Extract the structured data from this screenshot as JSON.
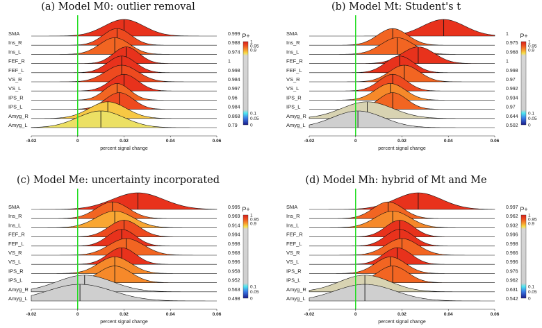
{
  "colorbar": {
    "title": "P+",
    "ticks": [
      "1",
      "0.95",
      "0.9",
      "0.1",
      "0.05",
      "0"
    ]
  },
  "chart_data": [
    {
      "type": "ridgeline",
      "title": "(a) Model M0: outlier removal",
      "xlabel": "percent signal change",
      "xlim": [
        -0.02,
        0.06
      ],
      "xticks": [
        "-0.02",
        "0",
        "0.02",
        "0.04",
        "0.06"
      ],
      "reference_line": 0,
      "regions": [
        {
          "name": "SMA",
          "mean": 0.02,
          "sd": 0.0085,
          "p": "0.999"
        },
        {
          "name": "Ins_R",
          "mean": 0.017,
          "sd": 0.006,
          "p": "0.988"
        },
        {
          "name": "Ins_L",
          "mean": 0.016,
          "sd": 0.0065,
          "p": "0.974"
        },
        {
          "name": "FEF_R",
          "mean": 0.021,
          "sd": 0.0055,
          "p": "1"
        },
        {
          "name": "FEF_L",
          "mean": 0.019,
          "sd": 0.006,
          "p": "0.998"
        },
        {
          "name": "VS_R",
          "mean": 0.019,
          "sd": 0.007,
          "p": "0.984"
        },
        {
          "name": "VS_L",
          "mean": 0.02,
          "sd": 0.006,
          "p": "0.997"
        },
        {
          "name": "IPS_R",
          "mean": 0.017,
          "sd": 0.0055,
          "p": "0.96"
        },
        {
          "name": "IPS_L",
          "mean": 0.018,
          "sd": 0.006,
          "p": "0.984"
        },
        {
          "name": "Amyg_R",
          "mean": 0.013,
          "sd": 0.008,
          "p": "0.868"
        },
        {
          "name": "Amyg_L",
          "mean": 0.01,
          "sd": 0.01,
          "p": "0.79"
        }
      ]
    },
    {
      "type": "ridgeline",
      "title": "(b) Model Mt: Student's t",
      "xlabel": "percent signal change",
      "xlim": [
        -0.02,
        0.06
      ],
      "xticks": [
        "-0.02",
        "0",
        "0.02",
        "0.04",
        "0.06"
      ],
      "reference_line": 0,
      "regions": [
        {
          "name": "SMA",
          "mean": 0.038,
          "sd": 0.009,
          "p": "1"
        },
        {
          "name": "Ins_R",
          "mean": 0.016,
          "sd": 0.0065,
          "p": "0.975"
        },
        {
          "name": "Ins_L",
          "mean": 0.018,
          "sd": 0.007,
          "p": "0.968"
        },
        {
          "name": "FEF_R",
          "mean": 0.027,
          "sd": 0.007,
          "p": "1"
        },
        {
          "name": "FEF_L",
          "mean": 0.019,
          "sd": 0.006,
          "p": "0.998"
        },
        {
          "name": "VS_R",
          "mean": 0.021,
          "sd": 0.0065,
          "p": "0.97"
        },
        {
          "name": "VS_L",
          "mean": 0.016,
          "sd": 0.006,
          "p": "0.992"
        },
        {
          "name": "IPS_R",
          "mean": 0.015,
          "sd": 0.0065,
          "p": "0.934"
        },
        {
          "name": "IPS_L",
          "mean": 0.016,
          "sd": 0.006,
          "p": "0.97"
        },
        {
          "name": "Amyg_R",
          "mean": 0.005,
          "sd": 0.011,
          "p": "0.644"
        },
        {
          "name": "Amyg_L",
          "mean": 0.001,
          "sd": 0.011,
          "p": "0.502"
        }
      ]
    },
    {
      "type": "ridgeline",
      "title": "(c) Model Me: uncertainty incorporated",
      "xlabel": "percent signal change",
      "xlim": [
        -0.02,
        0.06
      ],
      "xticks": [
        "-0.02",
        "0",
        "0.02",
        "0.04",
        "0.06"
      ],
      "reference_line": 0,
      "regions": [
        {
          "name": "SMA",
          "mean": 0.026,
          "sd": 0.011,
          "p": "0.995"
        },
        {
          "name": "Ins_R",
          "mean": 0.015,
          "sd": 0.007,
          "p": "0.969"
        },
        {
          "name": "Ins_L",
          "mean": 0.016,
          "sd": 0.008,
          "p": "0.914"
        },
        {
          "name": "FEF_R",
          "mean": 0.02,
          "sd": 0.0065,
          "p": "0.994"
        },
        {
          "name": "FEF_L",
          "mean": 0.019,
          "sd": 0.006,
          "p": "0.998"
        },
        {
          "name": "VS_R",
          "mean": 0.021,
          "sd": 0.0075,
          "p": "0.968"
        },
        {
          "name": "VS_L",
          "mean": 0.019,
          "sd": 0.006,
          "p": "0.996"
        },
        {
          "name": "IPS_R",
          "mean": 0.016,
          "sd": 0.007,
          "p": "0.958"
        },
        {
          "name": "IPS_L",
          "mean": 0.016,
          "sd": 0.007,
          "p": "0.952"
        },
        {
          "name": "Amyg_R",
          "mean": 0.003,
          "sd": 0.012,
          "p": "0.563"
        },
        {
          "name": "Amyg_L",
          "mean": 0.001,
          "sd": 0.014,
          "p": "0.498"
        }
      ]
    },
    {
      "type": "ridgeline",
      "title": "(d) Model Mh: hybrid of Mt and Me",
      "xlabel": "percent signal change",
      "xlim": [
        -0.02,
        0.06
      ],
      "xticks": [
        "-0.02",
        "0",
        "0.02",
        "0.04",
        "0.06"
      ],
      "reference_line": 0,
      "regions": [
        {
          "name": "SMA",
          "mean": 0.027,
          "sd": 0.01,
          "p": "0.997"
        },
        {
          "name": "Ins_R",
          "mean": 0.014,
          "sd": 0.0065,
          "p": "0.962"
        },
        {
          "name": "Ins_L",
          "mean": 0.016,
          "sd": 0.0075,
          "p": "0.932"
        },
        {
          "name": "FEF_R",
          "mean": 0.019,
          "sd": 0.006,
          "p": "0.996"
        },
        {
          "name": "FEF_L",
          "mean": 0.019,
          "sd": 0.006,
          "p": "0.998"
        },
        {
          "name": "VS_R",
          "mean": 0.02,
          "sd": 0.007,
          "p": "0.966"
        },
        {
          "name": "VS_L",
          "mean": 0.018,
          "sd": 0.006,
          "p": "0.996"
        },
        {
          "name": "IPS_R",
          "mean": 0.015,
          "sd": 0.0065,
          "p": "0.976"
        },
        {
          "name": "IPS_L",
          "mean": 0.016,
          "sd": 0.0065,
          "p": "0.962"
        },
        {
          "name": "Amyg_R",
          "mean": 0.004,
          "sd": 0.011,
          "p": "0.631"
        },
        {
          "name": "Amyg_L",
          "mean": 0.004,
          "sd": 0.013,
          "p": "0.542"
        }
      ]
    }
  ]
}
